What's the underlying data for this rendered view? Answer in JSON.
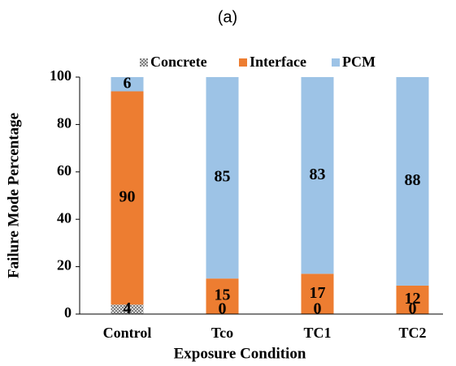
{
  "chart_data": {
    "type": "stacked_bar",
    "title": "(a)",
    "x_label": "Exposure Condition",
    "y_label": "Failure Mode Percentage",
    "categories": [
      "Control",
      "Tco",
      "TC1",
      "TC2"
    ],
    "series": [
      {
        "name": "Concrete",
        "color": "#a6a6a6",
        "values": [
          4,
          0,
          0,
          0
        ]
      },
      {
        "name": "Interface",
        "color": "#ed7d31",
        "values": [
          90,
          15,
          17,
          12
        ]
      },
      {
        "name": "PCM",
        "color": "#9dc3e6",
        "values": [
          6,
          85,
          83,
          88
        ]
      }
    ],
    "ylim": [
      0,
      100
    ],
    "yticks": [
      0,
      20,
      40,
      60,
      80,
      100
    ],
    "legend": "top"
  }
}
